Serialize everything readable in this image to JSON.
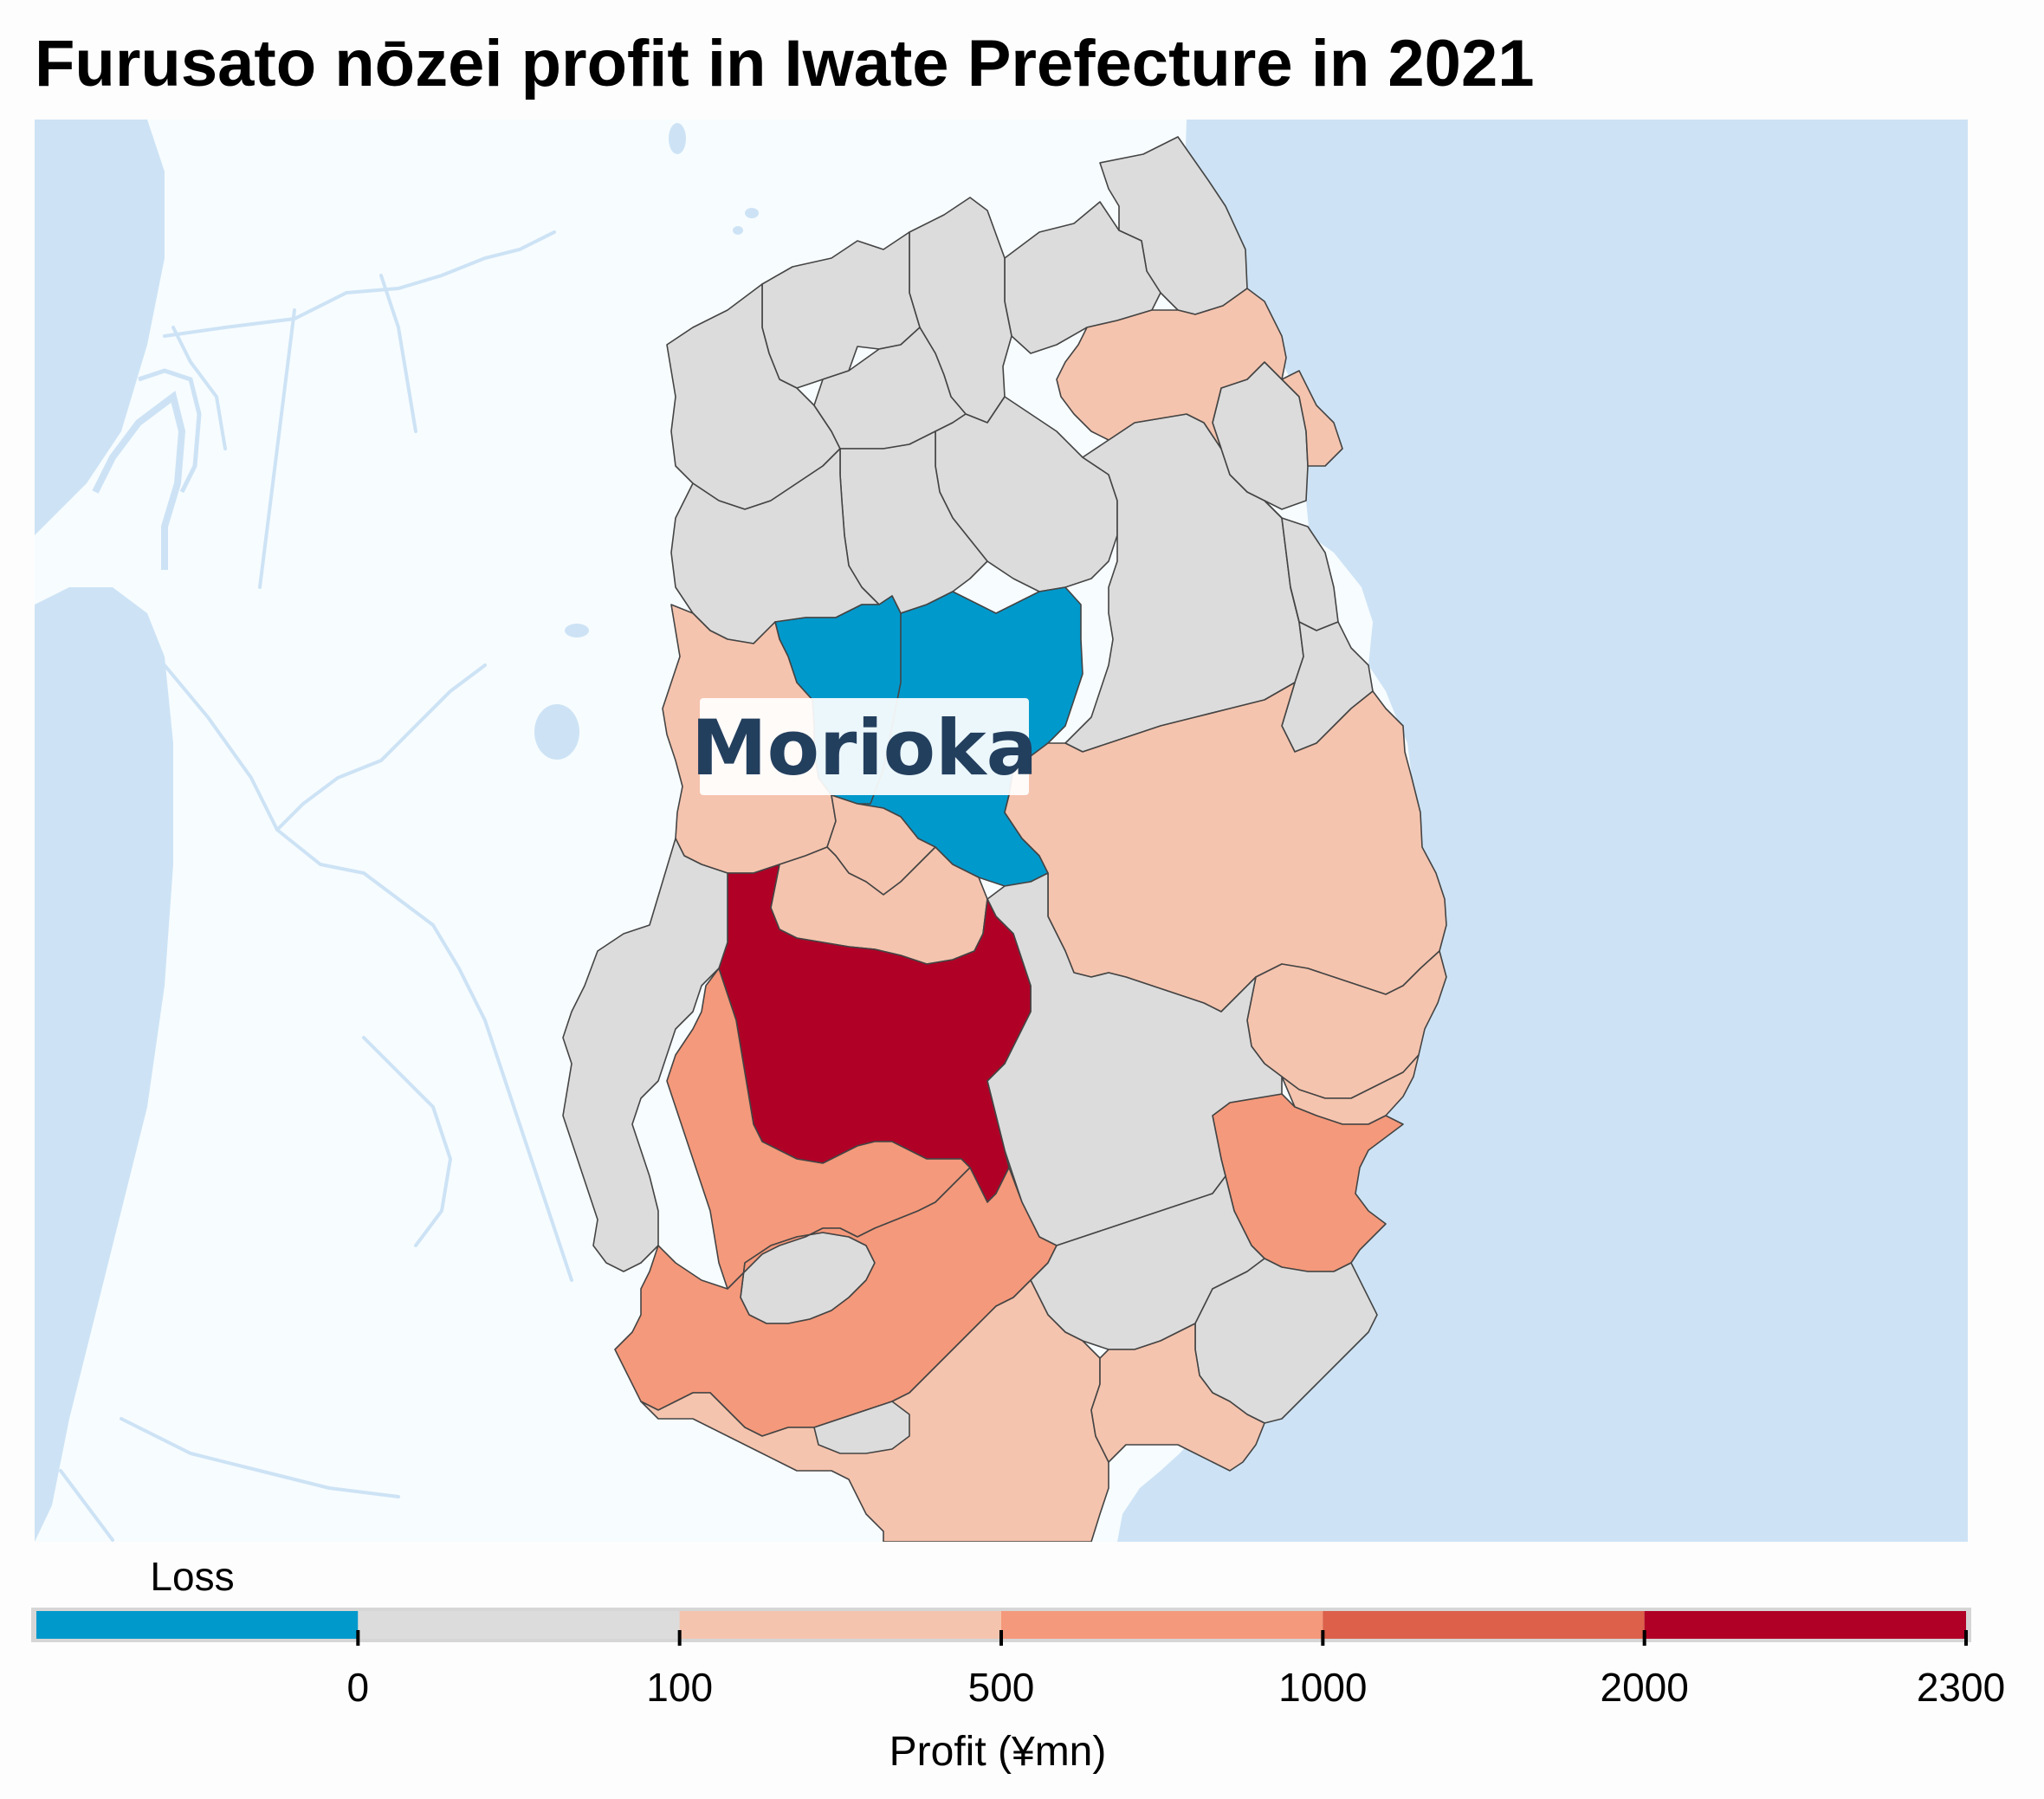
{
  "title": "Furusato nōzei profit in Iwate Prefecture in 2021",
  "map": {
    "city_label": "Morioka",
    "colors": {
      "sea": "#cde3f5",
      "land": "#f7fcff",
      "border": "#444444",
      "water_lines": "#cde3f5"
    }
  },
  "chart_data": {
    "type": "choropleth",
    "title": "Furusato nōzei profit in Iwate Prefecture in 2021",
    "legend": {
      "title": "Profit (¥mn)",
      "loss_label": "Loss",
      "placement": "bottom",
      "tick_labels": [
        "0",
        "100",
        "500",
        "1000",
        "2000",
        "2300"
      ],
      "bins": [
        {
          "label": "Loss",
          "min": null,
          "max": 0,
          "color": "#0099cc"
        },
        {
          "label": "0–100",
          "min": 0,
          "max": 100,
          "color": "#dcdcdc"
        },
        {
          "label": "100–500",
          "min": 100,
          "max": 500,
          "color": "#f5c4ae"
        },
        {
          "label": "500–1000",
          "min": 500,
          "max": 1000,
          "color": "#f4997b"
        },
        {
          "label": "1000–2000",
          "min": 1000,
          "max": 2000,
          "color": "#dc604a"
        },
        {
          "label": "2000–2300",
          "min": 2000,
          "max": 2300,
          "color": "#b10026"
        }
      ]
    }
  }
}
